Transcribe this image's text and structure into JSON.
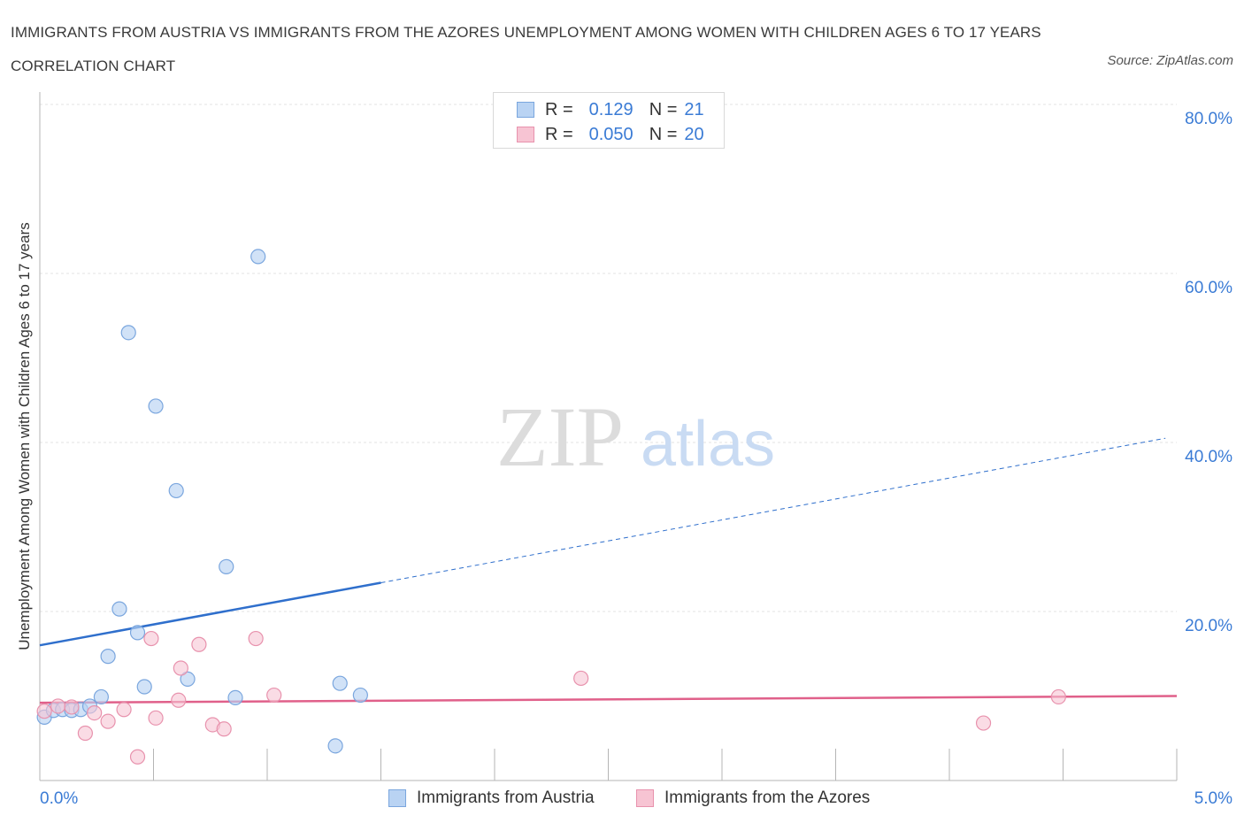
{
  "title": "IMMIGRANTS FROM AUSTRIA VS IMMIGRANTS FROM THE AZORES UNEMPLOYMENT AMONG WOMEN WITH CHILDREN AGES 6 TO 17 YEARS CORRELATION CHART",
  "source": "Source: ZipAtlas.com",
  "watermark": {
    "zip": "ZIP",
    "atlas": "atlas"
  },
  "legend": {
    "austria": {
      "r_label": "R =",
      "r_value": "0.129",
      "n_label": "N =",
      "n_value": "21"
    },
    "azores": {
      "r_label": "R =",
      "r_value": "0.050",
      "n_label": "N =",
      "n_value": "20"
    }
  },
  "colors": {
    "austria_fill": "#b9d3f3",
    "austria_stroke": "#7aa6de",
    "austria_line": "#2f6fcc",
    "azores_fill": "#f7c4d3",
    "azores_stroke": "#e892ad",
    "azores_line": "#e0608a",
    "tick_label": "#3a7bd5",
    "grid": "#e3e3e3"
  },
  "chart_data": {
    "type": "scatter",
    "title": "IMMIGRANTS FROM AUSTRIA VS IMMIGRANTS FROM THE AZORES UNEMPLOYMENT AMONG WOMEN WITH CHILDREN AGES 6 TO 17 YEARS CORRELATION CHART",
    "xlabel": "",
    "ylabel": "Unemployment Among Women with Children Ages 6 to 17 years",
    "xlim": [
      0,
      5
    ],
    "ylim": [
      0,
      80
    ],
    "x_tick_labels": [
      "0.0%",
      "5.0%"
    ],
    "y_tick_labels": [
      "20.0%",
      "40.0%",
      "60.0%",
      "80.0%"
    ],
    "y_ticks": [
      20,
      40,
      60,
      80
    ],
    "grid": true,
    "legend_position": "top-center",
    "series": [
      {
        "name": "Immigrants from Austria",
        "R": 0.129,
        "N": 21,
        "points": [
          [
            0.02,
            7.5
          ],
          [
            0.06,
            8.3
          ],
          [
            0.1,
            8.4
          ],
          [
            0.14,
            8.3
          ],
          [
            0.18,
            8.4
          ],
          [
            0.22,
            8.8
          ],
          [
            0.27,
            9.9
          ],
          [
            0.3,
            14.7
          ],
          [
            0.35,
            20.3
          ],
          [
            0.39,
            53.0
          ],
          [
            0.43,
            17.5
          ],
          [
            0.46,
            11.1
          ],
          [
            0.51,
            44.3
          ],
          [
            0.6,
            34.3
          ],
          [
            0.65,
            12.0
          ],
          [
            0.82,
            25.3
          ],
          [
            0.86,
            9.8
          ],
          [
            0.96,
            62.0
          ],
          [
            1.3,
            4.1
          ],
          [
            1.32,
            11.5
          ],
          [
            1.41,
            10.1
          ]
        ],
        "trend": {
          "x_start": 0,
          "y_start": 16.0,
          "x_solid_end": 1.5,
          "y_solid_end": 23.4,
          "x_end": 4.95,
          "y_end": 40.5
        }
      },
      {
        "name": "Immigrants from the Azores",
        "R": 0.05,
        "N": 20,
        "points": [
          [
            0.02,
            8.2
          ],
          [
            0.08,
            8.8
          ],
          [
            0.14,
            8.7
          ],
          [
            0.2,
            5.6
          ],
          [
            0.24,
            8.0
          ],
          [
            0.3,
            7.0
          ],
          [
            0.37,
            8.4
          ],
          [
            0.43,
            2.8
          ],
          [
            0.49,
            16.8
          ],
          [
            0.51,
            7.4
          ],
          [
            0.61,
            9.5
          ],
          [
            0.62,
            13.3
          ],
          [
            0.76,
            6.6
          ],
          [
            0.7,
            16.1
          ],
          [
            0.81,
            6.1
          ],
          [
            0.95,
            16.8
          ],
          [
            1.03,
            10.1
          ],
          [
            2.38,
            12.1
          ],
          [
            4.15,
            6.8
          ],
          [
            4.48,
            9.9
          ]
        ],
        "trend": {
          "x_start": 0,
          "y_start": 9.2,
          "x_end": 5.0,
          "y_end": 10.0
        }
      }
    ]
  }
}
